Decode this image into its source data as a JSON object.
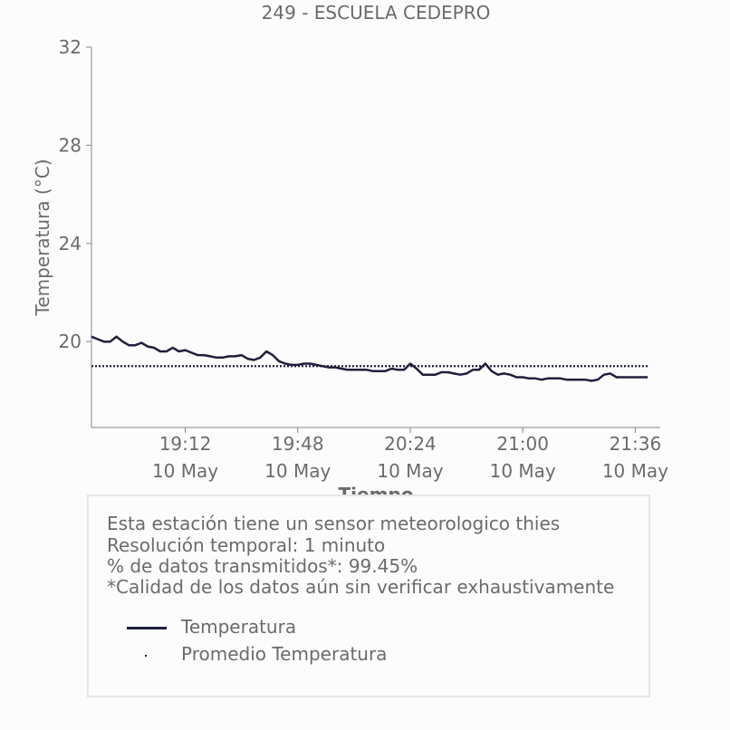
{
  "chart_data": {
    "type": "line",
    "title": "249 - ESCUELA CEDEPRO",
    "xlabel": "Tiempo",
    "ylabel": "Temperatura (°C)",
    "y_ticks": [
      "20",
      "24",
      "28",
      "32"
    ],
    "ylim": [
      16.5,
      32
    ],
    "x_ticks": [
      {
        "time": "19:12",
        "date": "10 May"
      },
      {
        "time": "19:48",
        "date": "10 May"
      },
      {
        "time": "20:24",
        "date": "10 May"
      },
      {
        "time": "21:00",
        "date": "10 May"
      },
      {
        "time": "21:36",
        "date": "10 May"
      }
    ],
    "x_range": [
      "18:42",
      "21:44"
    ],
    "grid": false,
    "series": [
      {
        "name": "Temperatura",
        "style": "solid",
        "color": "#1f1f3d",
        "points": [
          [
            "18:42",
            20.2
          ],
          [
            "18:44",
            20.1
          ],
          [
            "18:46",
            20.0
          ],
          [
            "18:48",
            20.0
          ],
          [
            "18:50",
            20.2
          ],
          [
            "18:52",
            20.0
          ],
          [
            "18:54",
            19.85
          ],
          [
            "18:56",
            19.85
          ],
          [
            "18:58",
            19.95
          ],
          [
            "19:00",
            19.8
          ],
          [
            "19:02",
            19.75
          ],
          [
            "19:04",
            19.6
          ],
          [
            "19:06",
            19.6
          ],
          [
            "19:08",
            19.75
          ],
          [
            "19:10",
            19.6
          ],
          [
            "19:12",
            19.65
          ],
          [
            "19:14",
            19.55
          ],
          [
            "19:16",
            19.45
          ],
          [
            "19:18",
            19.45
          ],
          [
            "19:20",
            19.4
          ],
          [
            "19:22",
            19.35
          ],
          [
            "19:24",
            19.35
          ],
          [
            "19:26",
            19.4
          ],
          [
            "19:28",
            19.4
          ],
          [
            "19:30",
            19.45
          ],
          [
            "19:32",
            19.3
          ],
          [
            "19:34",
            19.25
          ],
          [
            "19:36",
            19.35
          ],
          [
            "19:38",
            19.6
          ],
          [
            "19:40",
            19.45
          ],
          [
            "19:42",
            19.2
          ],
          [
            "19:44",
            19.1
          ],
          [
            "19:46",
            19.05
          ],
          [
            "19:48",
            19.05
          ],
          [
            "19:50",
            19.1
          ],
          [
            "19:52",
            19.1
          ],
          [
            "19:54",
            19.05
          ],
          [
            "19:56",
            19.0
          ],
          [
            "19:58",
            18.95
          ],
          [
            "20:00",
            18.95
          ],
          [
            "20:02",
            18.9
          ],
          [
            "20:04",
            18.85
          ],
          [
            "20:06",
            18.85
          ],
          [
            "20:08",
            18.85
          ],
          [
            "20:10",
            18.85
          ],
          [
            "20:12",
            18.8
          ],
          [
            "20:14",
            18.8
          ],
          [
            "20:16",
            18.8
          ],
          [
            "20:18",
            18.9
          ],
          [
            "20:20",
            18.85
          ],
          [
            "20:22",
            18.85
          ],
          [
            "20:24",
            19.1
          ],
          [
            "20:26",
            18.9
          ],
          [
            "20:28",
            18.65
          ],
          [
            "20:30",
            18.65
          ],
          [
            "20:32",
            18.65
          ],
          [
            "20:34",
            18.75
          ],
          [
            "20:36",
            18.75
          ],
          [
            "20:38",
            18.7
          ],
          [
            "20:40",
            18.65
          ],
          [
            "20:42",
            18.7
          ],
          [
            "20:44",
            18.85
          ],
          [
            "20:46",
            18.85
          ],
          [
            "20:48",
            19.1
          ],
          [
            "20:50",
            18.8
          ],
          [
            "20:52",
            18.65
          ],
          [
            "20:54",
            18.7
          ],
          [
            "20:56",
            18.65
          ],
          [
            "20:58",
            18.55
          ],
          [
            "21:00",
            18.55
          ],
          [
            "21:02",
            18.5
          ],
          [
            "21:04",
            18.5
          ],
          [
            "21:06",
            18.45
          ],
          [
            "21:08",
            18.5
          ],
          [
            "21:10",
            18.5
          ],
          [
            "21:12",
            18.5
          ],
          [
            "21:14",
            18.45
          ],
          [
            "21:16",
            18.45
          ],
          [
            "21:18",
            18.45
          ],
          [
            "21:20",
            18.45
          ],
          [
            "21:22",
            18.4
          ],
          [
            "21:24",
            18.45
          ],
          [
            "21:26",
            18.65
          ],
          [
            "21:28",
            18.7
          ],
          [
            "21:30",
            18.55
          ],
          [
            "21:32",
            18.55
          ],
          [
            "21:34",
            18.55
          ],
          [
            "21:36",
            18.55
          ],
          [
            "21:38",
            18.55
          ],
          [
            "21:40",
            18.55
          ]
        ]
      },
      {
        "name": "Promedio Temperatura",
        "style": "dotted",
        "color": "#1f1f3d",
        "value": 19.0,
        "x_span": [
          "18:42",
          "21:40"
        ]
      }
    ]
  },
  "info": {
    "lines": [
      "Esta estación tiene un sensor meteorologico thies",
      "Resolución temporal: 1 minuto",
      "% de datos transmitidos*: 99.45%",
      "*Calidad de los datos aún sin verificar exhaustivamente"
    ]
  },
  "legend": {
    "items": [
      {
        "label": "Temperatura",
        "style": "solid"
      },
      {
        "label": "Promedio Temperatura",
        "style": "dotted"
      }
    ]
  },
  "colors": {
    "series": "#1f1f3d",
    "text": "#6b6b6b",
    "axis": "#888888",
    "box_border": "#e5e5e5",
    "background": "#fcfcfc"
  }
}
